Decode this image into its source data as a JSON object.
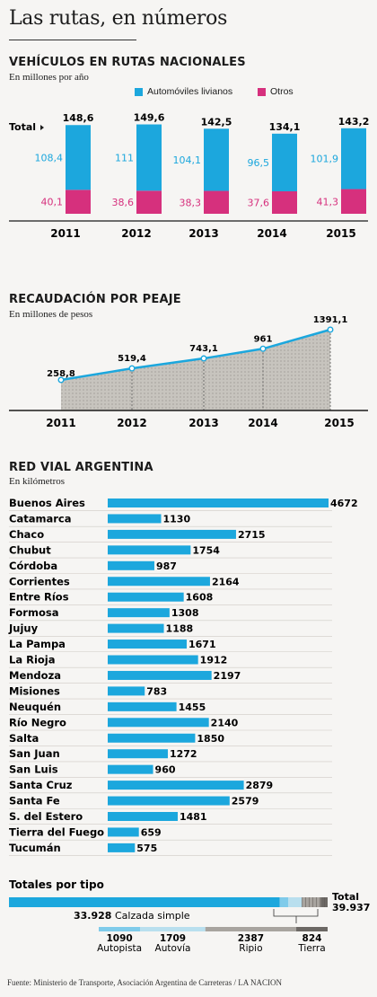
{
  "page": {
    "title": "Las rutas, en números",
    "source": "Fuente: Ministerio de Transporte, Asociación Argentina de Carreteras / LA NACION"
  },
  "colors": {
    "blue": "#1ca7dd",
    "magenta": "#d6307d",
    "gray_area": "#c7c4be",
    "dark": "#1b1b1b",
    "tierra": "#6c6864",
    "ripio": "#a8a49f"
  },
  "chart_data": [
    {
      "type": "bar",
      "title": "VEHÍCULOS EN RUTAS NACIONALES",
      "subtitle": "En millones por año",
      "stacked": true,
      "total_label": "Total",
      "categories": [
        "2011",
        "2012",
        "2013",
        "2014",
        "2015"
      ],
      "series": [
        {
          "name": "Automóviles livianos",
          "color": "#1ca7dd",
          "values": [
            108.4,
            111,
            104.1,
            96.5,
            101.9
          ],
          "labels": [
            "108,4",
            "111",
            "104,1",
            "96,5",
            "101,9"
          ]
        },
        {
          "name": "Otros",
          "color": "#d6307d",
          "values": [
            40.1,
            38.6,
            38.3,
            37.6,
            41.3
          ],
          "labels": [
            "40,1",
            "38,6",
            "38,3",
            "37,6",
            "41,3"
          ]
        }
      ],
      "totals": [
        148.6,
        149.6,
        142.5,
        134.1,
        143.2
      ],
      "total_labels": [
        "148,6",
        "149,6",
        "142,5",
        "134,1",
        "143,2"
      ],
      "legend": "top-right"
    },
    {
      "type": "area",
      "title": "RECAUDACIÓN POR PEAJE",
      "subtitle": "En millones de pesos",
      "x": [
        "2011",
        "2012",
        "2013",
        "2014",
        "2015"
      ],
      "values": [
        258.8,
        519.4,
        743.1,
        961,
        1391.1
      ],
      "labels": [
        "258,8",
        "519,4",
        "743,1",
        "961",
        "1391,1"
      ]
    },
    {
      "type": "bar",
      "orientation": "horizontal",
      "title": "RED VIAL ARGENTINA",
      "subtitle": "En kilómetros",
      "categories": [
        "Buenos Aires",
        "Catamarca",
        "Chaco",
        "Chubut",
        "Córdoba",
        "Corrientes",
        "Entre Ríos",
        "Formosa",
        "Jujuy",
        "La Pampa",
        "La Rioja",
        "Mendoza",
        "Misiones",
        "Neuquén",
        "Río Negro",
        "Salta",
        "San Juan",
        "San Luis",
        "Santa Cruz",
        "Santa Fe",
        "S. del Estero",
        "Tierra del Fuego",
        "Tucumán"
      ],
      "values": [
        4672,
        1130,
        2715,
        1754,
        987,
        2164,
        1608,
        1308,
        1188,
        1671,
        1912,
        2197,
        783,
        1455,
        2140,
        1850,
        1272,
        960,
        2879,
        2579,
        1481,
        659,
        575
      ]
    },
    {
      "type": "bar",
      "orientation": "horizontal",
      "stacked": true,
      "title": "Totales por tipo",
      "total_label": "Total",
      "total_value_label": "39.937",
      "total": 39937,
      "main_label": "Calzada simple",
      "main_value_label": "33.928",
      "segments": [
        {
          "name": "Calzada simple",
          "value": 33928,
          "label": "33.928",
          "color": "#1ca7dd"
        },
        {
          "name": "Autopista",
          "value": 1090,
          "label": "1090",
          "color": "#7fcbea"
        },
        {
          "name": "Autovía",
          "value": 1709,
          "label": "1709",
          "color": "#b9dfee"
        },
        {
          "name": "Ripio",
          "value": 2387,
          "label": "2387",
          "color": "#a8a49f"
        },
        {
          "name": "Tierra",
          "value": 824,
          "label": "824",
          "color": "#6c6864"
        }
      ]
    }
  ]
}
